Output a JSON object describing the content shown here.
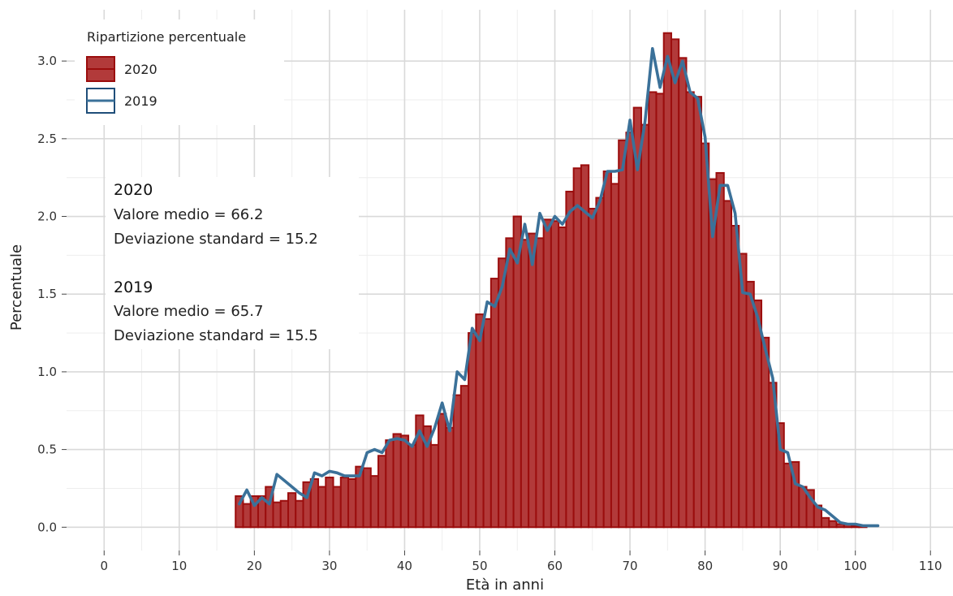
{
  "chart_data": {
    "type": "bar",
    "xlabel": "Età in anni",
    "ylabel": "Percentuale",
    "xlim": [
      -5,
      113
    ],
    "ylim": [
      -0.15,
      3.33
    ],
    "x_ticks": [
      0,
      10,
      20,
      30,
      40,
      50,
      60,
      70,
      80,
      90,
      100,
      110
    ],
    "y_ticks": [
      0.0,
      0.5,
      1.0,
      1.5,
      2.0,
      2.5,
      3.0
    ],
    "y_tick_labels": [
      "0.0",
      "0.5",
      "1.0",
      "1.5",
      "2.0",
      "2.5",
      "3.0"
    ],
    "grid": true,
    "legend": {
      "title": "Ripartizione percentuale",
      "position": "top-left",
      "entries": [
        "2020",
        "2019"
      ]
    },
    "colors": {
      "bar_fill": "#b23a3a",
      "bar_stroke": "#9b0d0d",
      "line": "#3b7199",
      "line_key_border": "#1f4e79",
      "grid": "#d9d9d9"
    },
    "annotations": [
      {
        "head": "2020",
        "lines": [
          "Valore medio = 66.2",
          "Deviazione standard = 15.2"
        ]
      },
      {
        "head": "2019",
        "lines": [
          "Valore medio = 65.7",
          "Deviazione standard = 15.5"
        ]
      }
    ],
    "series": [
      {
        "name": "2020",
        "type": "bar",
        "x": [
          18,
          19,
          20,
          21,
          22,
          23,
          24,
          25,
          26,
          27,
          28,
          29,
          30,
          31,
          32,
          33,
          34,
          35,
          36,
          37,
          38,
          39,
          40,
          41,
          42,
          43,
          44,
          45,
          46,
          47,
          48,
          49,
          50,
          51,
          52,
          53,
          54,
          55,
          56,
          57,
          58,
          59,
          60,
          61,
          62,
          63,
          64,
          65,
          66,
          67,
          68,
          69,
          70,
          71,
          72,
          73,
          74,
          75,
          76,
          77,
          78,
          79,
          80,
          81,
          82,
          83,
          84,
          85,
          86,
          87,
          88,
          89,
          90,
          91,
          92,
          93,
          94,
          95,
          96,
          97,
          98,
          99,
          100,
          101
        ],
        "values": [
          0.2,
          0.15,
          0.2,
          0.2,
          0.26,
          0.16,
          0.17,
          0.22,
          0.17,
          0.29,
          0.31,
          0.26,
          0.32,
          0.26,
          0.32,
          0.31,
          0.39,
          0.38,
          0.33,
          0.46,
          0.56,
          0.6,
          0.59,
          0.53,
          0.72,
          0.65,
          0.53,
          0.73,
          0.64,
          0.85,
          0.91,
          1.25,
          1.37,
          1.34,
          1.6,
          1.73,
          1.86,
          2.0,
          1.85,
          1.89,
          1.86,
          1.98,
          1.97,
          1.93,
          2.16,
          2.31,
          2.33,
          2.05,
          2.12,
          2.29,
          2.21,
          2.49,
          2.54,
          2.7,
          2.59,
          2.8,
          2.79,
          3.18,
          3.14,
          3.02,
          2.8,
          2.77,
          2.47,
          2.24,
          2.28,
          2.1,
          1.94,
          1.76,
          1.58,
          1.46,
          1.22,
          0.93,
          0.67,
          0.41,
          0.42,
          0.26,
          0.24,
          0.14,
          0.06,
          0.04,
          0.02,
          0.02,
          0.01,
          0.01
        ]
      },
      {
        "name": "2019",
        "type": "line",
        "x": [
          18,
          19,
          20,
          21,
          22,
          23,
          24,
          25,
          26,
          27,
          28,
          29,
          30,
          31,
          32,
          33,
          34,
          35,
          36,
          37,
          38,
          39,
          40,
          41,
          42,
          43,
          44,
          45,
          46,
          47,
          48,
          49,
          50,
          51,
          52,
          53,
          54,
          55,
          56,
          57,
          58,
          59,
          60,
          61,
          62,
          63,
          64,
          65,
          66,
          67,
          68,
          69,
          70,
          71,
          72,
          73,
          74,
          75,
          76,
          77,
          78,
          79,
          80,
          81,
          82,
          83,
          84,
          85,
          86,
          87,
          88,
          89,
          90,
          91,
          92,
          93,
          94,
          95,
          96,
          97,
          98,
          99,
          100,
          101,
          102,
          103
        ],
        "values": [
          0.15,
          0.24,
          0.14,
          0.19,
          0.15,
          0.34,
          0.3,
          0.26,
          0.22,
          0.19,
          0.35,
          0.33,
          0.36,
          0.35,
          0.33,
          0.33,
          0.33,
          0.48,
          0.5,
          0.48,
          0.56,
          0.57,
          0.56,
          0.52,
          0.62,
          0.52,
          0.64,
          0.8,
          0.62,
          1.0,
          0.95,
          1.28,
          1.2,
          1.45,
          1.42,
          1.55,
          1.79,
          1.7,
          1.95,
          1.69,
          2.02,
          1.91,
          2.0,
          1.95,
          2.03,
          2.07,
          2.03,
          1.99,
          2.1,
          2.29,
          2.29,
          2.3,
          2.62,
          2.3,
          2.61,
          3.08,
          2.83,
          3.03,
          2.86,
          3.0,
          2.8,
          2.76,
          2.51,
          1.87,
          2.2,
          2.2,
          2.02,
          1.51,
          1.5,
          1.35,
          1.15,
          0.96,
          0.5,
          0.48,
          0.28,
          0.26,
          0.19,
          0.13,
          0.11,
          0.07,
          0.03,
          0.02,
          0.02,
          0.01,
          0.01,
          0.01
        ]
      }
    ]
  }
}
